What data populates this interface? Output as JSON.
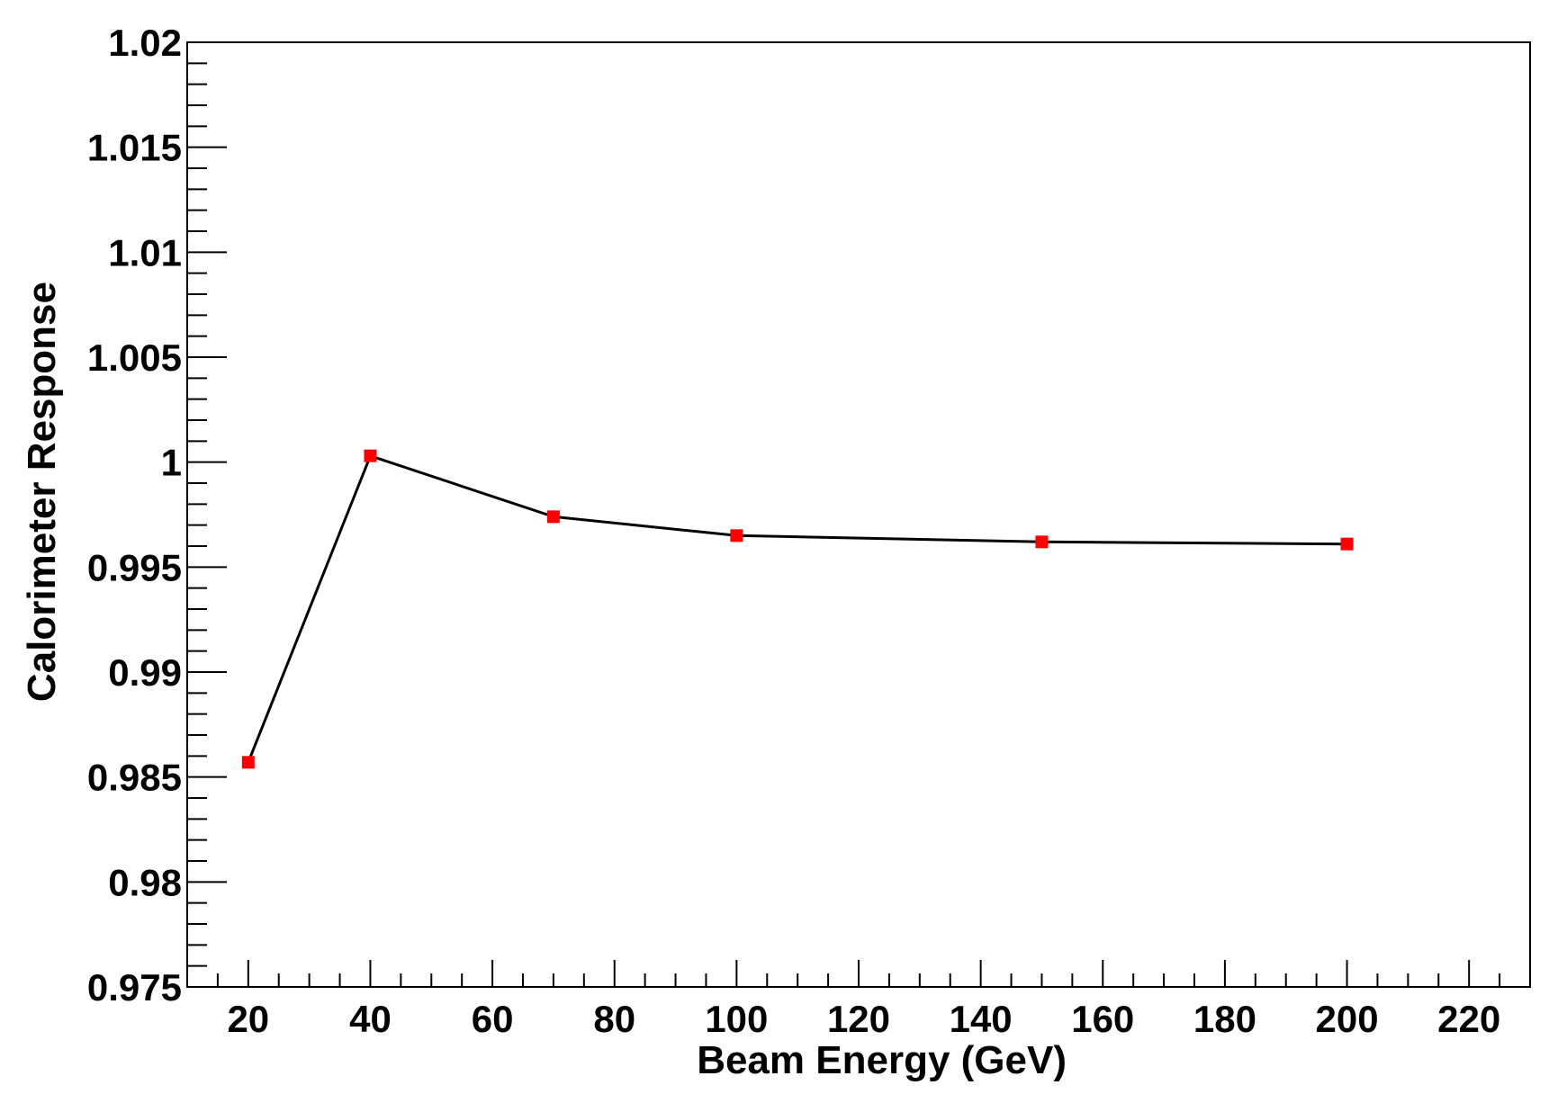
{
  "chart_data": {
    "type": "line",
    "title": "",
    "xlabel": "Beam Energy (GeV)",
    "ylabel": "Calorimeter Response",
    "xlim": [
      10,
      230
    ],
    "ylim": [
      0.975,
      1.02
    ],
    "x_ticks": [
      20,
      40,
      60,
      80,
      100,
      120,
      140,
      160,
      180,
      200,
      220
    ],
    "x_tick_labels": [
      "20",
      "40",
      "60",
      "80",
      "100",
      "120",
      "140",
      "160",
      "180",
      "200",
      "220"
    ],
    "y_ticks": [
      0.975,
      0.98,
      0.985,
      0.99,
      0.995,
      1.0,
      1.005,
      1.01,
      1.015,
      1.02
    ],
    "y_tick_labels": [
      "0.975",
      "0.98",
      "0.985",
      "0.99",
      "0.995",
      "1",
      "1.005",
      "1.01",
      "1.015",
      "1.02"
    ],
    "grid": false,
    "legend": "none",
    "series": [
      {
        "x": [
          20,
          40,
          70,
          100,
          150,
          200
        ],
        "y": [
          0.9857,
          1.0003,
          0.9974,
          0.9965,
          0.9962,
          0.9961
        ],
        "line_color": "#000000",
        "marker_color": "#ff0000",
        "marker": "square"
      }
    ]
  }
}
